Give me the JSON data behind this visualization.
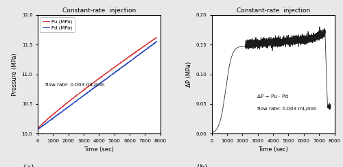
{
  "title": "Constant-rate  injection",
  "panel_a": {
    "xlabel": "Time (sec)",
    "ylabel": "Pressure (MPa)",
    "xlim": [
      0,
      8000
    ],
    "ylim": [
      10.0,
      12.0
    ],
    "yticks": [
      10.0,
      10.5,
      11.0,
      11.5,
      12.0
    ],
    "xticks": [
      0,
      1000,
      2000,
      3000,
      4000,
      5000,
      6000,
      7000,
      8000
    ],
    "legend_labels": [
      "Pu (MPa)",
      "Pd (MPa)"
    ],
    "legend_colors": [
      "#d94040",
      "#3050c0"
    ],
    "annotation": "flow rate: 0.003 mL/min",
    "label": "(a)"
  },
  "panel_b": {
    "xlabel": "Time (sec)",
    "ylabel": "ΔP (MPa)",
    "xlim": [
      0,
      8000
    ],
    "ylim": [
      0.0,
      0.2
    ],
    "yticks": [
      0.0,
      0.05,
      0.1,
      0.15,
      0.2
    ],
    "xticks": [
      0,
      1000,
      2000,
      3000,
      4000,
      5000,
      6000,
      7000,
      8000
    ],
    "annotation1": "ΔP = Pu - Pd",
    "annotation2": "flow rate: 0.003 mL/min",
    "label": "(b)"
  },
  "line_color_pu": "#d94040",
  "line_color_pd": "#3050c0",
  "line_color_dp": "#1a1a1a",
  "background_color": "#e8e8e8",
  "plot_bg_color": "#ffffff"
}
